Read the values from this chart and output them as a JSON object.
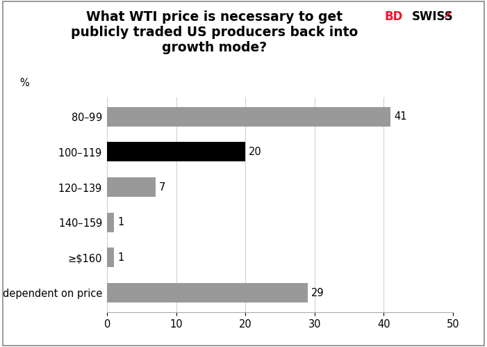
{
  "title": "What WTI price is necessary to get\npublicly traded US producers back into\ngrowth mode?",
  "categories": [
    "$80–$99",
    "$100–$119",
    "$120–$139",
    "$140–$159",
    "≥$160",
    "Not dependent on price"
  ],
  "values": [
    41,
    20,
    7,
    1,
    1,
    29
  ],
  "bar_colors": [
    "#999999",
    "#000000",
    "#999999",
    "#999999",
    "#999999",
    "#999999"
  ],
  "ylabel_text": "%",
  "xlim": [
    0,
    50
  ],
  "xticks": [
    0,
    10,
    20,
    30,
    40,
    50
  ],
  "title_fontsize": 13.5,
  "label_fontsize": 10.5,
  "tick_fontsize": 10.5,
  "value_label_fontsize": 10.5,
  "background_color": "#ffffff",
  "grid_color": "#cccccc",
  "spine_color": "#aaaaaa",
  "bar_height": 0.55
}
